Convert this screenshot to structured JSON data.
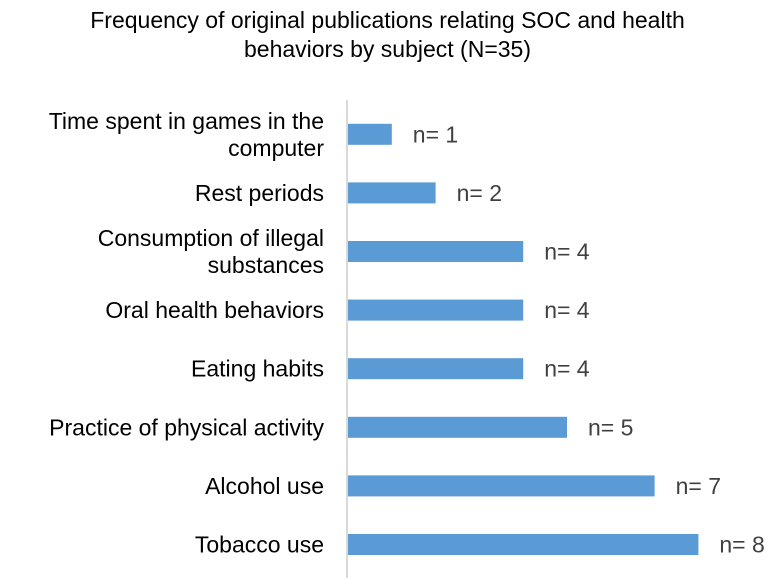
{
  "chart_data": {
    "type": "bar",
    "orientation": "horizontal",
    "title": "Frequency of original publications relating SOC and health behaviors by subject (N=35)",
    "xlabel": "",
    "ylabel": "",
    "xlim": [
      0,
      8
    ],
    "grid": false,
    "legend": "none",
    "categories": [
      "Time spent in games in the computer",
      "Rest periods",
      "Consumption of illegal substances",
      "Oral health behaviors",
      "Eating habits",
      "Practice of physical activity",
      "Alcohol use",
      "Tobacco use"
    ],
    "category_lines": [
      [
        "Time spent in games in the",
        "computer"
      ],
      [
        "Rest periods"
      ],
      [
        "Consumption of illegal",
        "substances"
      ],
      [
        "Oral health behaviors"
      ],
      [
        "Eating habits"
      ],
      [
        "Practice of physical activity"
      ],
      [
        "Alcohol use"
      ],
      [
        "Tobacco use"
      ]
    ],
    "values": [
      1,
      2,
      4,
      4,
      4,
      5,
      7,
      8
    ],
    "data_labels": [
      "n= 1",
      "n= 2",
      "n= 4",
      "n= 4",
      "n= 4",
      "n= 5",
      "n= 7",
      "n= 8"
    ],
    "colors": {
      "bar": "#5b9bd5",
      "axis": "#d9d9d9",
      "label": "#000000",
      "data_label": "#404040"
    }
  }
}
